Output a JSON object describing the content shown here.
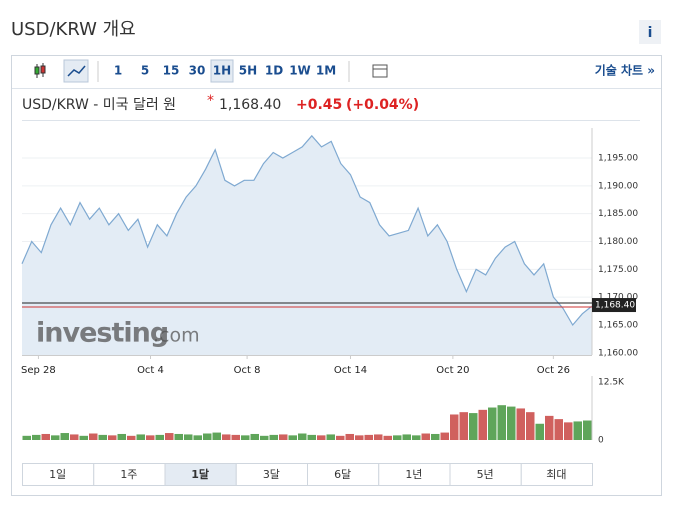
{
  "header": {
    "title": "USD/KRW 개요",
    "info": "i"
  },
  "toolbar": {
    "intervals": [
      "1",
      "5",
      "15",
      "30",
      "1H",
      "5H",
      "1D",
      "1W",
      "1M"
    ],
    "active_interval_index": 4,
    "technical": "기술 차트 »"
  },
  "quote": {
    "name": "USD/KRW - 미국 달러 원",
    "price": "1,168.40",
    "change": "+0.45",
    "change_pct": "(+0.04%)"
  },
  "watermark": {
    "brand": "investing",
    "domain": ".com"
  },
  "ranges": {
    "items": [
      "1일",
      "1주",
      "1달",
      "3달",
      "6달",
      "1년",
      "5년",
      "최대"
    ],
    "active_index": 2
  },
  "chart_data": {
    "type": "line",
    "color": "#7fa9d1",
    "fill": "#e3ecf5",
    "ylim": [
      1159.6,
      1200.4
    ],
    "yticks": [
      {
        "value": 1160,
        "label": "1,160.00"
      },
      {
        "value": 1165,
        "label": "1,165.00"
      },
      {
        "value": 1170,
        "label": "1,170.00"
      },
      {
        "value": 1175,
        "label": "1,175.00"
      },
      {
        "value": 1180,
        "label": "1,180.00"
      },
      {
        "value": 1185,
        "label": "1,185.00"
      },
      {
        "value": 1190,
        "label": "1,190.00"
      },
      {
        "value": 1195,
        "label": "1,195.00"
      }
    ],
    "xlim": [
      0,
      59
    ],
    "xticks": [
      {
        "value": 1.7,
        "label": "Sep 28"
      },
      {
        "value": 13.3,
        "label": "Oct 4"
      },
      {
        "value": 23.3,
        "label": "Oct 8"
      },
      {
        "value": 34,
        "label": "Oct 14"
      },
      {
        "value": 44.6,
        "label": "Oct 20"
      },
      {
        "value": 55,
        "label": "Oct 26"
      }
    ],
    "values": [
      1176,
      1180,
      1178,
      1183,
      1186,
      1183,
      1187,
      1184,
      1186,
      1183,
      1185,
      1182,
      1184,
      1179,
      1183,
      1181,
      1185,
      1188,
      1190,
      1193,
      1196.5,
      1191,
      1190,
      1191,
      1191,
      1194,
      1196,
      1195,
      1196,
      1197,
      1199,
      1197,
      1198,
      1194,
      1192,
      1188,
      1187,
      1183,
      1181,
      1181.5,
      1182,
      1186,
      1181,
      1183,
      1180,
      1175,
      1171,
      1175,
      1174,
      1177,
      1179,
      1180,
      1176,
      1174,
      1176,
      1170,
      1168,
      1165,
      1167,
      1168.4
    ],
    "last_label": {
      "value": 1168.4,
      "label": "1,168.40"
    },
    "volume": {
      "ylim": [
        0,
        12500
      ],
      "yticks": [
        {
          "value": 0,
          "label": "0"
        },
        {
          "value": 12500,
          "label": "12.5K"
        }
      ],
      "up_color": "#5fa55a",
      "down_color": "#d0605e",
      "values": [
        900,
        1100,
        1300,
        1000,
        1500,
        1200,
        900,
        1400,
        1100,
        1000,
        1300,
        900,
        1200,
        1000,
        1100,
        1500,
        1300,
        1200,
        1000,
        1400,
        1600,
        1200,
        1100,
        1000,
        1300,
        900,
        1100,
        1200,
        1000,
        1400,
        1100,
        1000,
        1200,
        900,
        1300,
        1000,
        1100,
        1200,
        900,
        1000,
        1200,
        1000,
        1400,
        1300,
        1600,
        5500,
        6000,
        5800,
        6500,
        7000,
        7500,
        7200,
        6800,
        6000,
        3500,
        5200,
        4500,
        3800,
        4000,
        4200
      ]
    }
  }
}
